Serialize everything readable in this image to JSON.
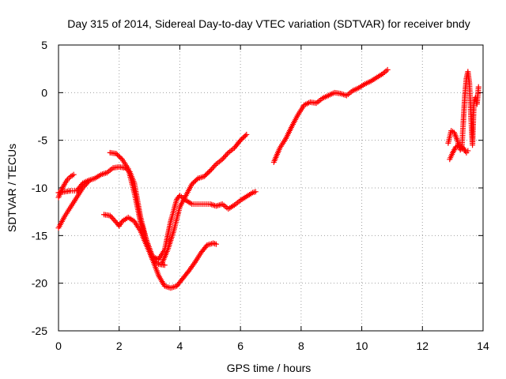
{
  "chart_data": {
    "type": "scatter",
    "title": "Day 315 of 2014, Sidereal Day-to-day VTEC variation (SDTVAR) for receiver bndy",
    "xlabel": "GPS time / hours",
    "ylabel": "SDTVAR / TECUs",
    "xlim": [
      0,
      14
    ],
    "ylim": [
      -25,
      5
    ],
    "xticks": [
      0,
      2,
      4,
      6,
      8,
      10,
      12,
      14
    ],
    "yticks": [
      -25,
      -20,
      -15,
      -10,
      -5,
      0,
      5
    ],
    "xtick_labels": [
      "0",
      "2",
      "4",
      "6",
      "8",
      "10",
      "12",
      "14"
    ],
    "ytick_labels": [
      "-25",
      "-20",
      "-15",
      "-10",
      "-5",
      "0",
      "5"
    ],
    "grid": true,
    "grid_style": "dotted",
    "marker": "plus",
    "color": "#ff0000",
    "series": [
      {
        "x": [
          0.0,
          0.1,
          0.2,
          0.3,
          0.4,
          0.5
        ],
        "y": [
          -11.0,
          -10.2,
          -9.6,
          -9.1,
          -8.8,
          -8.6
        ]
      },
      {
        "x": [
          0.0,
          0.2,
          0.4,
          0.6,
          0.8,
          1.0,
          1.2,
          1.4,
          1.6,
          1.8,
          2.0,
          2.2,
          2.35,
          2.5,
          2.7,
          2.9,
          3.1,
          3.3,
          3.5
        ],
        "y": [
          -10.5,
          -10.4,
          -10.3,
          -10.3,
          -9.5,
          -9.2,
          -9.0,
          -8.6,
          -8.4,
          -7.9,
          -7.8,
          -7.9,
          -8.3,
          -9.5,
          -13.0,
          -15.5,
          -17.5,
          -18.0,
          -18.1
        ]
      },
      {
        "x": [
          0.0,
          0.2,
          0.4,
          0.6,
          0.8,
          1.0
        ],
        "y": [
          -14.2,
          -13.0,
          -12.0,
          -11.0,
          -10.0,
          -9.3
        ]
      },
      {
        "x": [
          1.7,
          1.9,
          2.1,
          2.3,
          2.5,
          2.7,
          2.9,
          3.1,
          3.3,
          3.5,
          3.7,
          3.9,
          4.0,
          4.2,
          4.4,
          4.6,
          4.8,
          5.0,
          5.2,
          5.4,
          5.6,
          5.8,
          6.0,
          6.2,
          6.4,
          6.5
        ],
        "y": [
          -6.3,
          -6.4,
          -7.0,
          -8.0,
          -10.5,
          -13.5,
          -15.5,
          -17.2,
          -17.5,
          -16.5,
          -13.5,
          -11.2,
          -10.8,
          -11.3,
          -11.7,
          -11.7,
          -11.7,
          -11.7,
          -11.9,
          -11.7,
          -12.2,
          -11.8,
          -11.3,
          -10.9,
          -10.5,
          -10.4
        ]
      },
      {
        "x": [
          1.5,
          1.7,
          1.9,
          2.0,
          2.1,
          2.3,
          2.5,
          2.7,
          2.9,
          3.1,
          3.3,
          3.5,
          3.7,
          3.9,
          4.1,
          4.3,
          4.5,
          4.7,
          4.9,
          5.1,
          5.2
        ],
        "y": [
          -12.8,
          -12.9,
          -13.6,
          -14.0,
          -13.5,
          -13.1,
          -13.5,
          -14.5,
          -16.0,
          -17.5,
          -19.2,
          -20.3,
          -20.5,
          -20.3,
          -19.5,
          -18.7,
          -17.8,
          -16.8,
          -16.0,
          -15.8,
          -15.9
        ]
      },
      {
        "x": [
          3.4,
          3.6,
          3.8,
          4.0,
          4.2,
          4.4,
          4.6,
          4.8,
          5.0,
          5.2,
          5.4,
          5.6,
          5.8,
          6.0,
          6.2
        ],
        "y": [
          -18.0,
          -16.5,
          -14.5,
          -12.0,
          -10.8,
          -9.6,
          -9.0,
          -8.8,
          -8.2,
          -7.5,
          -7.0,
          -6.3,
          -5.8,
          -5.0,
          -4.4
        ]
      },
      {
        "x": [
          7.1,
          7.3,
          7.5,
          7.7,
          7.9,
          8.1,
          8.3,
          8.5,
          8.7,
          8.9,
          9.1,
          9.3,
          9.5,
          9.7,
          9.9,
          10.1,
          10.3,
          10.5,
          10.7,
          10.85
        ],
        "y": [
          -7.3,
          -5.8,
          -4.8,
          -3.5,
          -2.3,
          -1.3,
          -1.0,
          -1.1,
          -0.6,
          -0.3,
          0.0,
          -0.1,
          -0.3,
          0.2,
          0.5,
          0.9,
          1.2,
          1.6,
          2.0,
          2.4
        ]
      },
      {
        "x": [
          12.85,
          12.95,
          13.05,
          13.15,
          13.25,
          13.35,
          13.45,
          13.5
        ],
        "y": [
          -5.3,
          -4.0,
          -4.2,
          -5.0,
          -6.0,
          -5.8,
          -6.3,
          -6.1
        ]
      },
      {
        "x": [
          12.9,
          13.0,
          13.1,
          13.2,
          13.3,
          13.35,
          13.4,
          13.45,
          13.5,
          13.55,
          13.6,
          13.65,
          13.7,
          13.75,
          13.8,
          13.85
        ],
        "y": [
          -7.0,
          -6.3,
          -5.7,
          -5.6,
          -5.8,
          -3.0,
          -0.3,
          1.5,
          2.2,
          1.0,
          -2.5,
          -5.5,
          -1.0,
          -0.5,
          -1.2,
          0.6
        ]
      }
    ]
  }
}
